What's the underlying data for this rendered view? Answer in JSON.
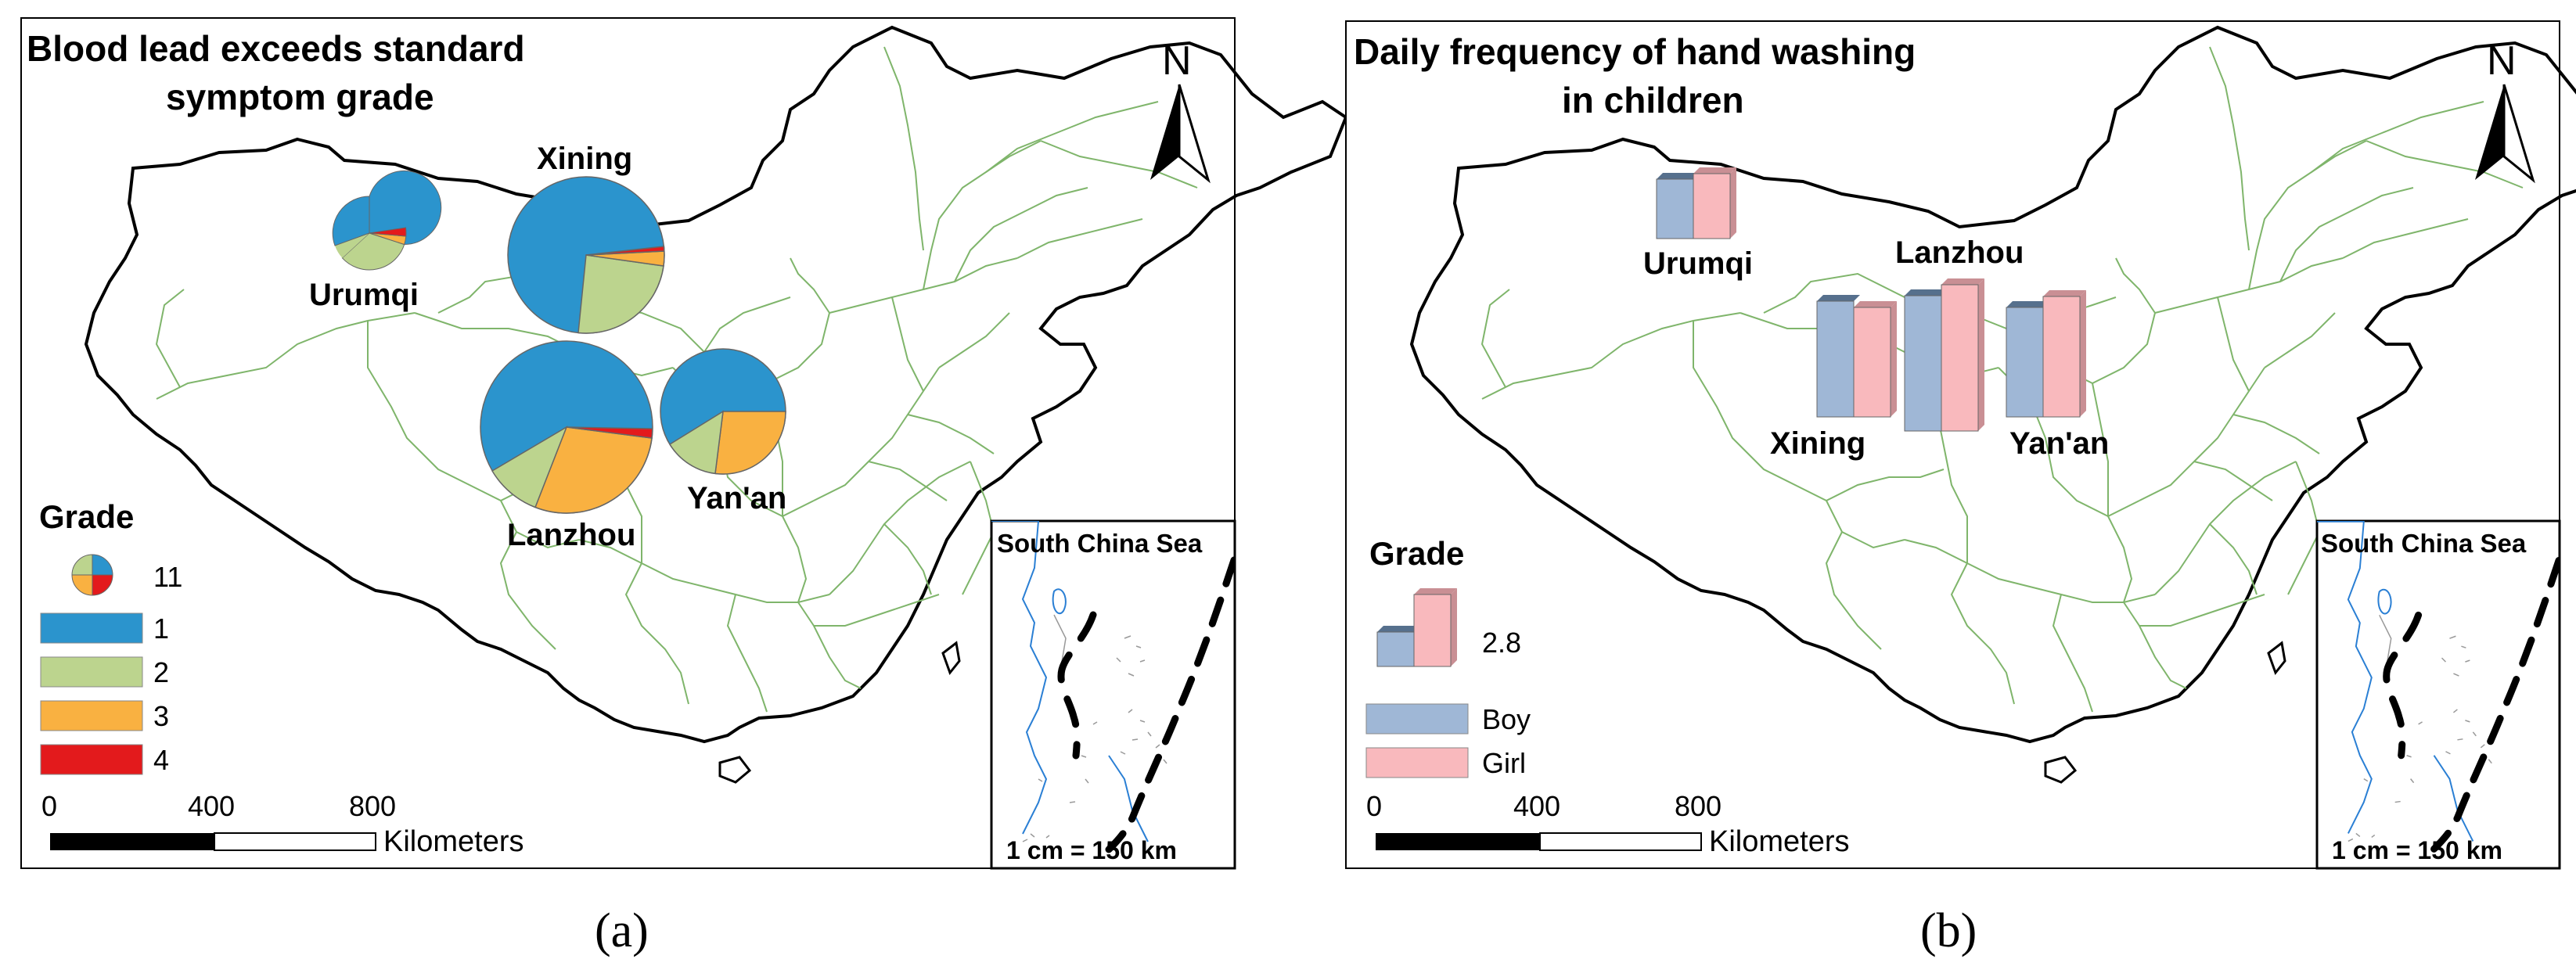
{
  "panel_a": {
    "title_line1": "Blood lead exceeds standard",
    "title_line2": "symptom grade",
    "north": "N",
    "cities": {
      "xining": "Xining",
      "urumqi": "Urumqi",
      "lanzhou": "Lanzhou",
      "yanan": "Yan'an"
    },
    "legend": {
      "title": "Grade",
      "size_value": "11",
      "items": [
        "1",
        "2",
        "3",
        "4"
      ],
      "colors": [
        "#2b94cd",
        "#bcd48e",
        "#f9b141",
        "#e31a1c"
      ]
    },
    "scale": {
      "t0": "0",
      "t1": "400",
      "t2": "800",
      "unit": "Kilometers"
    },
    "inset": {
      "title": "South China Sea",
      "scale": "1 cm = 150 km"
    },
    "caption": "(a)"
  },
  "panel_b": {
    "title_line1": "Daily frequency of hand washing",
    "title_line2": "in children",
    "north": "N",
    "cities": {
      "urumqi": "Urumqi",
      "lanzhou": "Lanzhou",
      "xining": "Xining",
      "yanan": "Yan'an"
    },
    "legend": {
      "title": "Grade",
      "size_value": "2.8",
      "boy": "Boy",
      "girl": "Girl",
      "boy_color": "#9fb7d6",
      "girl_color": "#f9b9bd"
    },
    "scale": {
      "t0": "0",
      "t1": "400",
      "t2": "800",
      "unit": "Kilometers"
    },
    "inset": {
      "title": "South China Sea",
      "scale": "1 cm = 150 km"
    },
    "caption": "(b)"
  }
}
